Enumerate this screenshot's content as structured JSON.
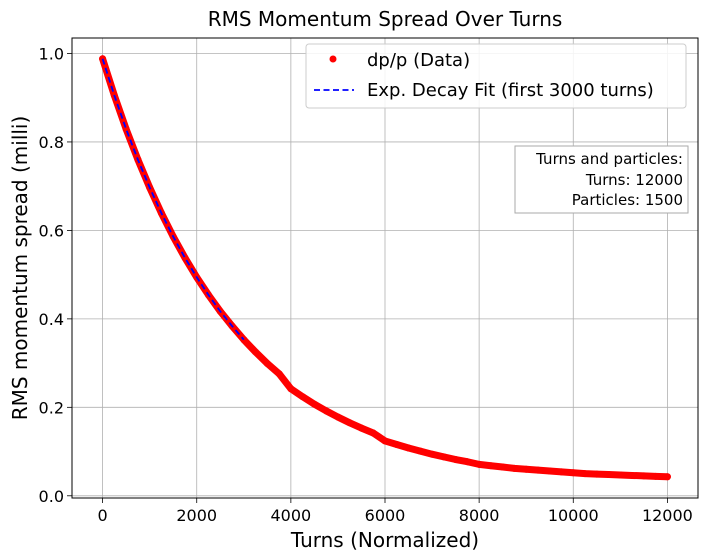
{
  "chart_data": {
    "type": "scatter",
    "title": "RMS Momentum Spread Over Turns",
    "xlabel": "Turns (Normalized)",
    "ylabel": "RMS momentum spread (milli)",
    "xlim": [
      -650,
      12650
    ],
    "ylim": [
      -0.005,
      1.035
    ],
    "xticks": [
      0,
      2000,
      4000,
      6000,
      8000,
      10000,
      12000
    ],
    "xtick_labels": [
      "0",
      "2000",
      "4000",
      "6000",
      "8000",
      "10000",
      "12000"
    ],
    "yticks": [
      0.0,
      0.2,
      0.4,
      0.6,
      0.8,
      1.0
    ],
    "ytick_labels": [
      "0.0",
      "0.2",
      "0.4",
      "0.6",
      "0.8",
      "1.0"
    ],
    "grid": true,
    "legend_position": "top-right",
    "series": [
      {
        "name": "dp/p (Data)",
        "style": "markers",
        "color": "#ff0000",
        "x": [
          0,
          250,
          500,
          750,
          1000,
          1250,
          1500,
          1750,
          2000,
          2250,
          2500,
          2750,
          3000,
          3250,
          3500,
          3750,
          4000,
          4250,
          4500,
          4750,
          5000,
          5250,
          5500,
          5750,
          6000,
          6250,
          6500,
          6750,
          7000,
          7250,
          7500,
          7750,
          8000,
          8250,
          8500,
          8750,
          9000,
          9250,
          9500,
          9750,
          10000,
          10250,
          10500,
          10750,
          11000,
          11250,
          11500,
          11750,
          12000
        ],
        "y": [
          0.988,
          0.905,
          0.829,
          0.76,
          0.697,
          0.639,
          0.586,
          0.538,
          0.494,
          0.454,
          0.417,
          0.384,
          0.353,
          0.325,
          0.299,
          0.276,
          0.242,
          0.224,
          0.207,
          0.192,
          0.178,
          0.165,
          0.153,
          0.142,
          0.124,
          0.116,
          0.108,
          0.101,
          0.094,
          0.088,
          0.082,
          0.077,
          0.071,
          0.068,
          0.065,
          0.062,
          0.06,
          0.058,
          0.056,
          0.054,
          0.052,
          0.05,
          0.049,
          0.048,
          0.047,
          0.046,
          0.045,
          0.044,
          0.043
        ]
      },
      {
        "name": "Exp. Decay Fit (first 3000 turns)",
        "style": "dashed-line",
        "color": "#0000ff",
        "x": [
          0,
          250,
          500,
          750,
          1000,
          1250,
          1500,
          1750,
          2000,
          2250,
          2500,
          2750,
          3000
        ],
        "y": [
          0.988,
          0.905,
          0.829,
          0.76,
          0.697,
          0.639,
          0.586,
          0.538,
          0.494,
          0.454,
          0.417,
          0.384,
          0.353
        ]
      }
    ],
    "annotation": {
      "lines": [
        "Turns and particles:",
        "Turns: 12000",
        "Particles: 1500"
      ],
      "position": "right-middle"
    }
  }
}
